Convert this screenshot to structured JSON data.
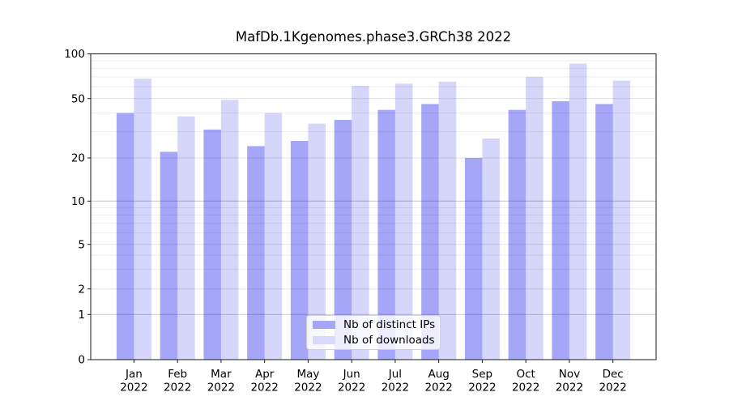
{
  "figure": {
    "title": "MafDb.1Kgenomes.phase3.GRCh38 2022"
  },
  "legend": {
    "position": "lower center",
    "items": [
      {
        "label": "Nb of distinct IPs",
        "color": "#a6a6f8"
      },
      {
        "label": "Nb of downloads",
        "color": "#d9d9fb"
      }
    ]
  },
  "axes": {
    "y_tick_labels": [
      "0",
      "1",
      "2",
      "5",
      "10",
      "20",
      "50",
      "100"
    ],
    "x_year": "2022"
  },
  "chart_data": {
    "type": "bar",
    "title": "MafDb.1Kgenomes.phase3.GRCh38 2022",
    "categories": [
      "Jan 2022",
      "Feb 2022",
      "Mar 2022",
      "Apr 2022",
      "May 2022",
      "Jun 2022",
      "Jul 2022",
      "Aug 2022",
      "Sep 2022",
      "Oct 2022",
      "Nov 2022",
      "Dec 2022"
    ],
    "series": [
      {
        "name": "Nb of distinct IPs",
        "color": "#a6a6f8",
        "values": [
          40,
          22,
          31,
          24,
          26,
          36,
          42,
          46,
          20,
          42,
          48,
          46
        ]
      },
      {
        "name": "Nb of downloads",
        "color": "#d9d9fb",
        "values": [
          68,
          38,
          49,
          40,
          34,
          61,
          63,
          65,
          27,
          70,
          86,
          66
        ]
      }
    ],
    "xlabel": "",
    "ylabel": "",
    "yscale": "symlog",
    "yticks": [
      0,
      1,
      2,
      5,
      10,
      20,
      50,
      100
    ],
    "ylim": [
      0,
      100
    ],
    "grid": true,
    "legend_position": "lower center"
  }
}
